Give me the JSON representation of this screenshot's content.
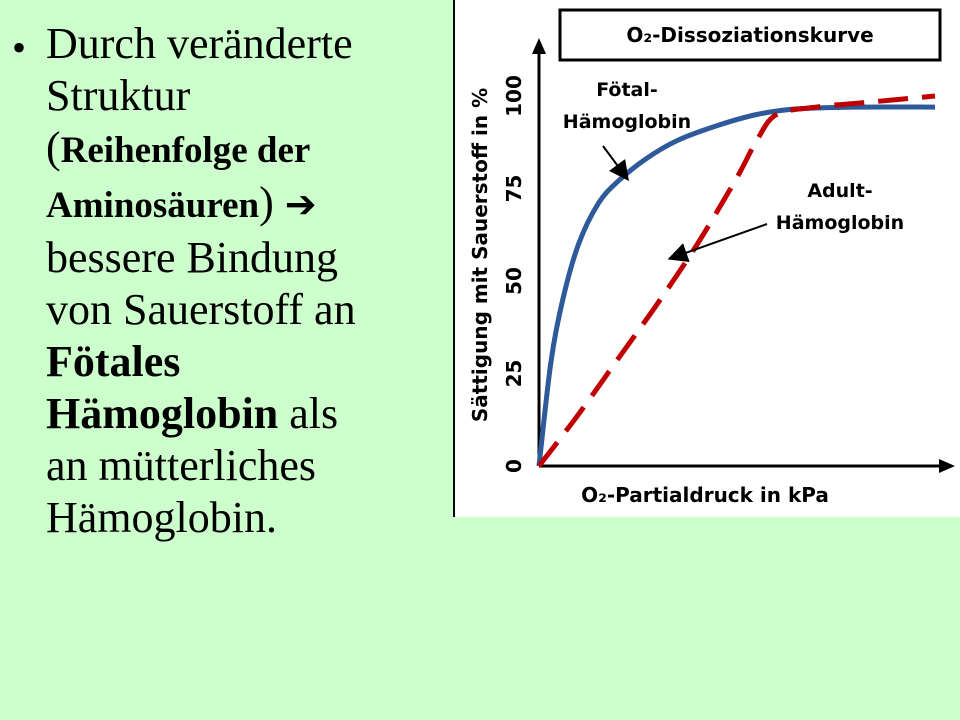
{
  "slide": {
    "bullet": "•",
    "line1": "Durch veränderte",
    "line2": "Struktur",
    "paren_open": "(",
    "line3": "Reihenfolge der",
    "line4": "Aminosäuren",
    "paren_close": ")",
    "arrow": "➔",
    "line5": "bessere Bindung",
    "line6": "von Sauerstoff an",
    "line7": "Fötales",
    "line8a": "Hämoglobin",
    "line8b": " als",
    "line9": "an mütterliches",
    "line10": "Hämoglobin."
  },
  "chart_data": {
    "type": "line",
    "title": "O₂-Dissoziationskurve",
    "xlabel": "O₂-Partialdruck in kPa",
    "ylabel": "Sättigung mit Sauerstoff in %",
    "yticks": [
      "0",
      "25",
      "50",
      "75",
      "100"
    ],
    "ylim": [
      0,
      100
    ],
    "xlim": [
      0,
      10
    ],
    "grid": false,
    "series": [
      {
        "name": "Fötal-Hämoglobin",
        "color": "#2e5a9c",
        "style": "solid",
        "x": [
          0,
          0.3,
          0.6,
          1.0,
          1.5,
          2.0,
          2.7,
          3.5,
          4.5,
          5.5,
          6.5,
          8.0,
          10.0
        ],
        "y": [
          0,
          28,
          45,
          60,
          71,
          77,
          83,
          88,
          92,
          95,
          96.5,
          97,
          97
        ]
      },
      {
        "name": "Adult-Hämoglobin",
        "color": "#c00000",
        "style": "dashed",
        "x": [
          0,
          1.0,
          2.0,
          3.0,
          4.0,
          5.0,
          5.5,
          6.0,
          7.0,
          8.0,
          9.0,
          10.0
        ],
        "y": [
          0,
          14,
          29,
          44,
          60,
          78,
          88,
          95,
          97,
          98,
          99,
          100
        ]
      }
    ],
    "annotations": [
      {
        "line1": "Fötal-",
        "line2": "Hämoglobin"
      },
      {
        "line1": "Adult-",
        "line2": "Hämoglobin"
      }
    ]
  }
}
